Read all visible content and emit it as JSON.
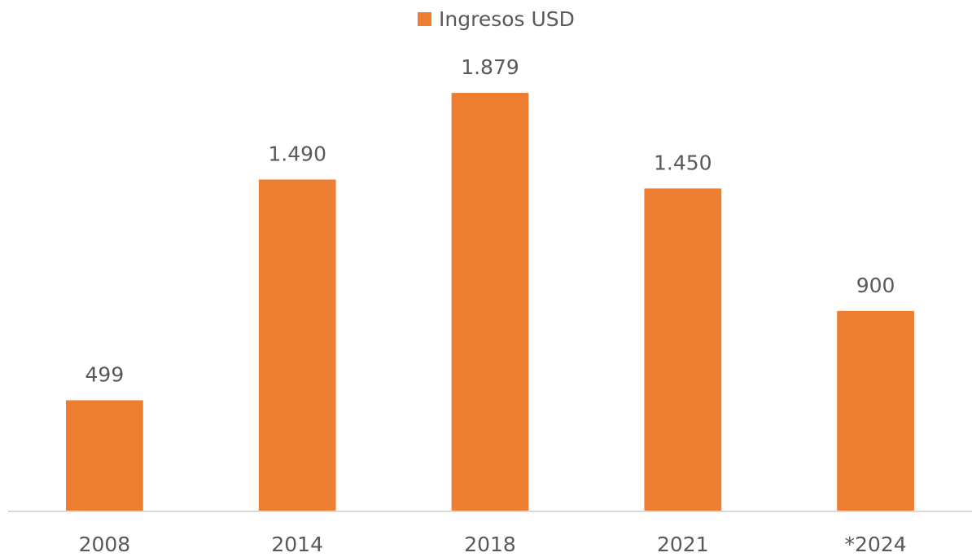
{
  "chart_data": {
    "type": "bar",
    "categories": [
      "2008",
      "2014",
      "2018",
      "2021",
      "*2024"
    ],
    "series": [
      {
        "name": "Ingresos USD",
        "color": "#ed7d31",
        "values": [
          499,
          1490,
          1879,
          1450,
          900
        ],
        "value_labels": [
          "499",
          "1.490",
          "1.879",
          "1.450",
          "900"
        ]
      }
    ],
    "ylim": [
      0,
      2000
    ],
    "legend": "top"
  }
}
